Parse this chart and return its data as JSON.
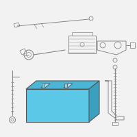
{
  "fig_bg": "#f2f2f2",
  "battery_fill": "#5bc8e8",
  "battery_fill_top": "#4ab5d5",
  "battery_fill_right": "#3aa0c0",
  "battery_outline": "#555555",
  "parts_color": "#888888",
  "parts_lw": 0.7
}
